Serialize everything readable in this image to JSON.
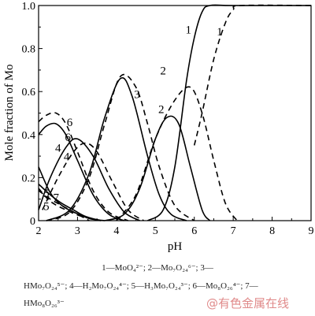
{
  "chart_data": {
    "type": "line",
    "xlabel": "pH",
    "ylabel": "Mole fraction of Mo",
    "xlim": [
      2,
      9
    ],
    "ylim": [
      0,
      1.0
    ],
    "xticks": [
      "2",
      "3",
      "4",
      "5",
      "6",
      "7",
      "8",
      "9"
    ],
    "yticks": [
      "0",
      "0.2",
      "0.4",
      "0.6",
      "0.8",
      "1.0"
    ],
    "series": [
      {
        "name": "1",
        "style": "solid",
        "x": [
          4.8,
          5.2,
          5.5,
          5.8,
          6.0,
          6.2,
          6.4,
          7.0,
          9.0
        ],
        "y": [
          0.0,
          0.05,
          0.25,
          0.65,
          0.85,
          0.97,
          1.0,
          1.0,
          1.0
        ]
      },
      {
        "name": "1",
        "style": "dashed",
        "x": [
          6.0,
          6.2,
          6.5,
          6.8,
          7.0,
          7.2,
          9.0
        ],
        "y": [
          0.35,
          0.5,
          0.75,
          0.92,
          0.98,
          1.0,
          1.0
        ]
      },
      {
        "name": "2",
        "style": "solid",
        "x": [
          3.7,
          4.2,
          4.6,
          5.0,
          5.3,
          5.6,
          5.9,
          6.2,
          6.4
        ],
        "y": [
          0.0,
          0.03,
          0.15,
          0.38,
          0.48,
          0.45,
          0.25,
          0.05,
          0.0
        ]
      },
      {
        "name": "2",
        "style": "dashed",
        "x": [
          4.0,
          4.5,
          5.0,
          5.5,
          5.9,
          6.2,
          6.5,
          6.8,
          7.1
        ],
        "y": [
          0.0,
          0.12,
          0.38,
          0.56,
          0.62,
          0.5,
          0.28,
          0.08,
          0.0
        ]
      },
      {
        "name": "3",
        "style": "solid",
        "x": [
          2.2,
          2.8,
          3.3,
          3.7,
          4.1,
          4.4,
          4.8,
          5.1,
          5.4,
          5.8
        ],
        "y": [
          0.0,
          0.05,
          0.22,
          0.48,
          0.66,
          0.58,
          0.3,
          0.12,
          0.03,
          0.0
        ]
      },
      {
        "name": "3",
        "style": "dashed",
        "x": [
          2.2,
          2.8,
          3.3,
          3.7,
          4.1,
          4.5,
          4.8,
          5.1,
          5.5,
          6.0
        ],
        "y": [
          0.0,
          0.04,
          0.2,
          0.45,
          0.67,
          0.62,
          0.45,
          0.25,
          0.07,
          0.0
        ]
      },
      {
        "name": "4",
        "style": "solid",
        "x": [
          2.0,
          2.3,
          2.7,
          3.0,
          3.4,
          3.8,
          4.2,
          4.6
        ],
        "y": [
          0.05,
          0.2,
          0.34,
          0.38,
          0.3,
          0.15,
          0.04,
          0.0
        ]
      },
      {
        "name": "4",
        "style": "dashed",
        "x": [
          2.1,
          2.5,
          2.9,
          3.2,
          3.5,
          3.9,
          4.3,
          4.7
        ],
        "y": [
          0.05,
          0.2,
          0.32,
          0.36,
          0.32,
          0.18,
          0.05,
          0.0
        ]
      },
      {
        "name": "5",
        "style": "solid",
        "x": [
          2.0,
          2.3,
          2.6,
          2.9,
          3.3,
          3.7
        ],
        "y": [
          0.25,
          0.13,
          0.07,
          0.04,
          0.01,
          0.0
        ]
      },
      {
        "name": "5",
        "style": "dashed",
        "x": [
          2.0,
          2.3,
          2.7,
          3.1,
          3.6
        ],
        "y": [
          0.15,
          0.09,
          0.05,
          0.02,
          0.0
        ]
      },
      {
        "name": "6",
        "style": "solid",
        "x": [
          2.0,
          2.2,
          2.45,
          2.7,
          3.0,
          3.4,
          3.8,
          4.2
        ],
        "y": [
          0.4,
          0.44,
          0.45,
          0.4,
          0.28,
          0.12,
          0.03,
          0.0
        ]
      },
      {
        "name": "6",
        "style": "dashed",
        "x": [
          2.0,
          2.2,
          2.45,
          2.7,
          3.0,
          3.4,
          3.8,
          4.3
        ],
        "y": [
          0.46,
          0.49,
          0.5,
          0.45,
          0.32,
          0.14,
          0.04,
          0.0
        ]
      },
      {
        "name": "7",
        "style": "solid",
        "x": [
          2.0,
          2.3,
          2.6,
          2.9,
          3.2,
          3.6
        ],
        "y": [
          0.17,
          0.12,
          0.08,
          0.05,
          0.02,
          0.0
        ]
      },
      {
        "name": "7",
        "style": "dashed",
        "x": [
          2.0,
          2.3,
          2.6,
          2.9,
          3.3
        ],
        "y": [
          0.14,
          0.1,
          0.07,
          0.04,
          0.0
        ]
      }
    ]
  },
  "legend_lines": [
    "1—MoO₄²⁻; 2—Mo₇O₂₄⁶⁻;    3—",
    "HMo₇O₂₄⁵⁻; 4—H₂Mo₇O₂₄⁴⁻; 5—H₃Mo₇O₂₄³⁻; 6—Mo₈O₂₆⁴⁻; 7—",
    "HMo₈O₂₆³⁻"
  ],
  "watermark": "@有色金属在线",
  "curve_labels": [
    {
      "text": "1",
      "x": 5.85,
      "y": 0.87
    },
    {
      "text": "1",
      "x": 6.65,
      "y": 0.86
    },
    {
      "text": "2",
      "x": 5.15,
      "y": 0.5
    },
    {
      "text": "2",
      "x": 5.2,
      "y": 0.68
    },
    {
      "text": "3",
      "x": 4.53,
      "y": 0.57
    },
    {
      "text": "4",
      "x": 2.5,
      "y": 0.32
    },
    {
      "text": "4",
      "x": 2.72,
      "y": 0.28
    },
    {
      "text": "5",
      "x": 2.2,
      "y": 0.11
    },
    {
      "text": "5",
      "x": 2.2,
      "y": 0.05
    },
    {
      "text": "6",
      "x": 2.8,
      "y": 0.44
    },
    {
      "text": "6",
      "x": 2.75,
      "y": 0.37
    },
    {
      "text": "7",
      "x": 2.45,
      "y": 0.09
    }
  ],
  "colors": {
    "line": "#000000",
    "axis": "#000000",
    "watermark": "#e08a8a"
  }
}
